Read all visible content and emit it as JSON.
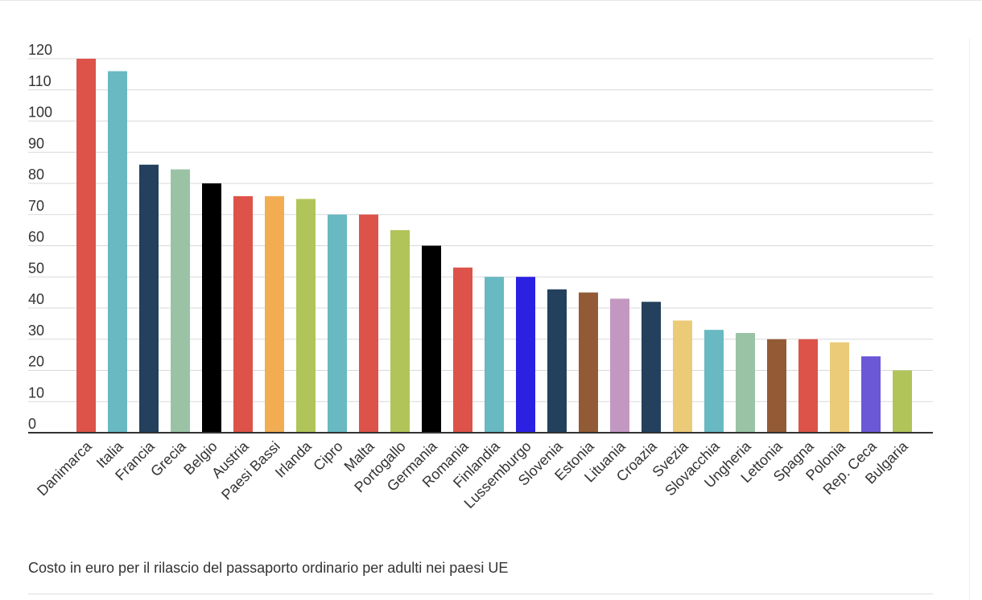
{
  "chart_data": {
    "type": "bar",
    "title": "",
    "xlabel": "",
    "ylabel": "",
    "ylim": [
      0,
      120
    ],
    "yticks": [
      0,
      10,
      20,
      30,
      40,
      50,
      60,
      70,
      80,
      90,
      100,
      110,
      120
    ],
    "grid": true,
    "categories": [
      "Danimarca",
      "Italia",
      "Francia",
      "Grecia",
      "Belgio",
      "Austria",
      "Paesi Bassi",
      "Irlanda",
      "Cipro",
      "Malta",
      "Portogallo",
      "Germania",
      "Romania",
      "Finlandia",
      "Lussemburgo",
      "Slovenia",
      "Estonia",
      "Lituania",
      "Croazia",
      "Svezia",
      "Slovacchia",
      "Ungheria",
      "Lettonia",
      "Spagna",
      "Polonia",
      "Rep. Ceca",
      "Bulgaria"
    ],
    "values": [
      120,
      116,
      86,
      84.5,
      80,
      75.9,
      75.9,
      75,
      70,
      70,
      65,
      60,
      53,
      50,
      50,
      46,
      45,
      43,
      42,
      36,
      33,
      32,
      30,
      30,
      29,
      24.5,
      20
    ],
    "colors": [
      "#dd5349",
      "#68b9c2",
      "#23405c",
      "#9ac3a6",
      "#000000",
      "#dd5349",
      "#f2ad52",
      "#b1c45a",
      "#68b9c2",
      "#dd5349",
      "#b1c45a",
      "#000000",
      "#dd5349",
      "#68b9c2",
      "#2a21e3",
      "#23405c",
      "#935b35",
      "#c298c0",
      "#23405c",
      "#ebcb77",
      "#68b9c2",
      "#9ac3a6",
      "#935b35",
      "#dd5349",
      "#ebcb77",
      "#6b58d7",
      "#b1c45a"
    ]
  },
  "caption": "Costo in euro per il rilascio del passaporto ordinario per adulti nei paesi UE"
}
